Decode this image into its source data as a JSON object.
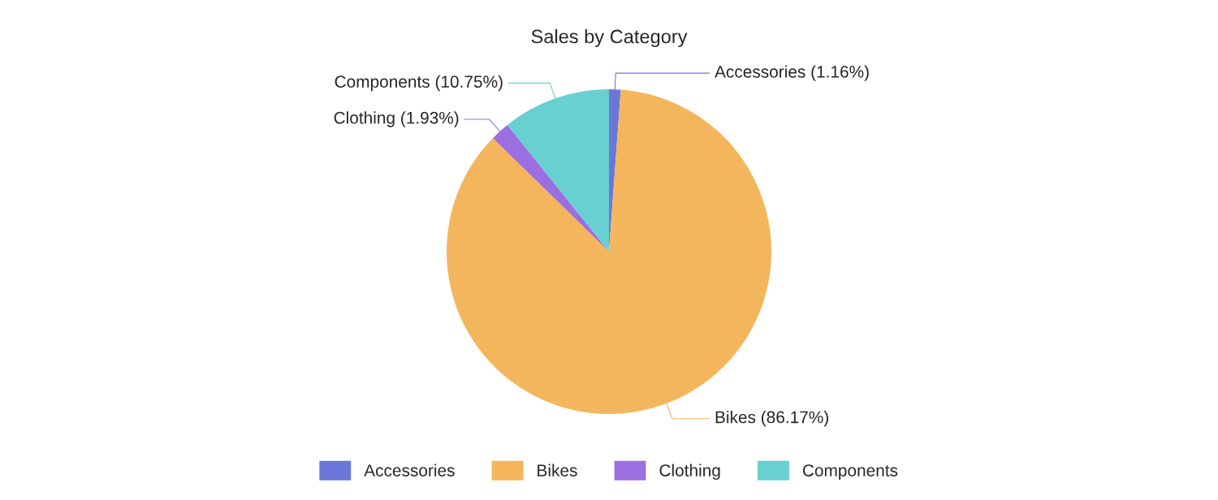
{
  "chart_data": {
    "type": "pie",
    "title": "Sales by Category",
    "categories": [
      "Accessories",
      "Bikes",
      "Clothing",
      "Components"
    ],
    "values": [
      1.16,
      86.17,
      1.93,
      10.75
    ],
    "colors": [
      "#6b77d8",
      "#f4b65c",
      "#9b6fdf",
      "#68d0d0"
    ],
    "value_labels": [
      "Accessories (1.16%)",
      "Bikes (86.17%)",
      "Clothing (1.93%)",
      "Components (10.75%)"
    ],
    "legend": "bottom"
  }
}
